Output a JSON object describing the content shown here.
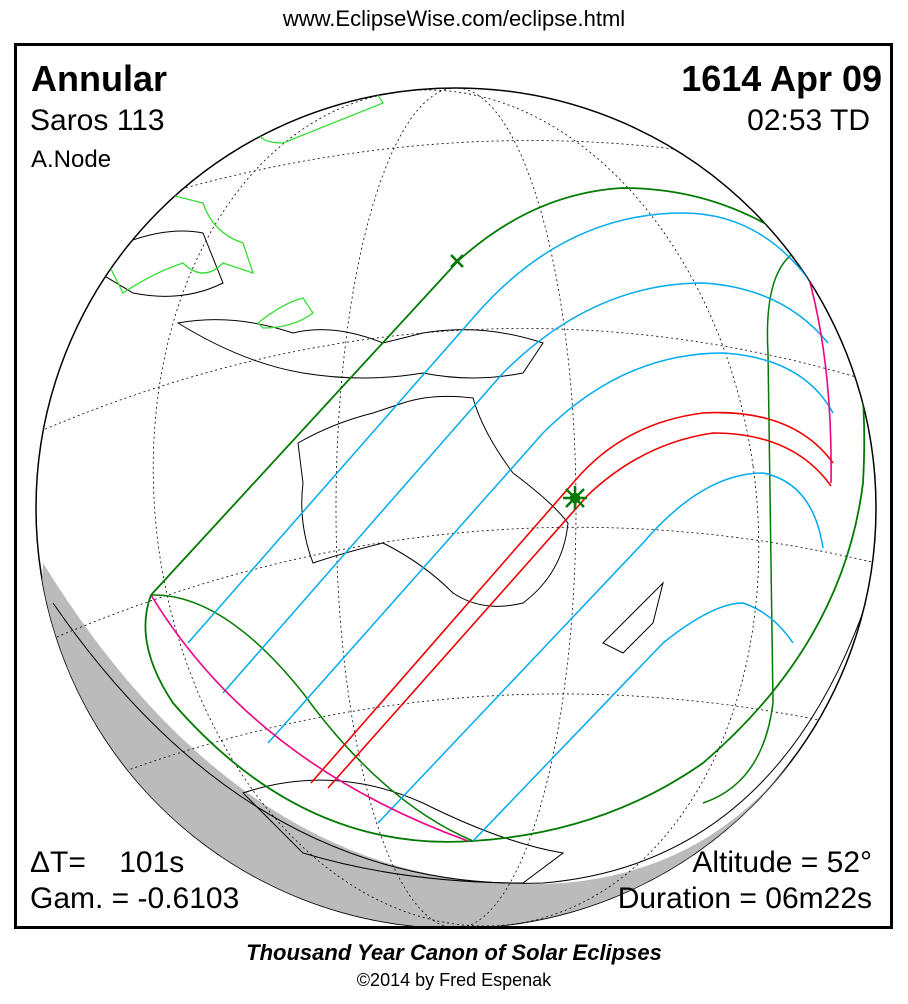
{
  "header": {
    "url": "www.EclipseWise.com/eclipse.html"
  },
  "eclipse": {
    "type": "Annular",
    "saros": "Saros 113",
    "node": "A.Node",
    "date": "1614 Apr 09",
    "time": "02:53 TD",
    "delta_t": "ΔT=    101s",
    "gamma": "Gam. = -0.6103",
    "altitude": "Altitude = 52°",
    "duration": "Duration = 06m22s"
  },
  "footer": {
    "title": "Thousand Year Canon of Solar Eclipses",
    "copyright": "©2014 by Fred Espenak"
  },
  "colors": {
    "penumbra_limit": "#007a00",
    "partial_isolines": "#00aaee",
    "central_path": "#ee0000",
    "rise_set": "#ee0088",
    "night_shadow": "#bbbbbb",
    "asia_coast": "#33dd33"
  }
}
